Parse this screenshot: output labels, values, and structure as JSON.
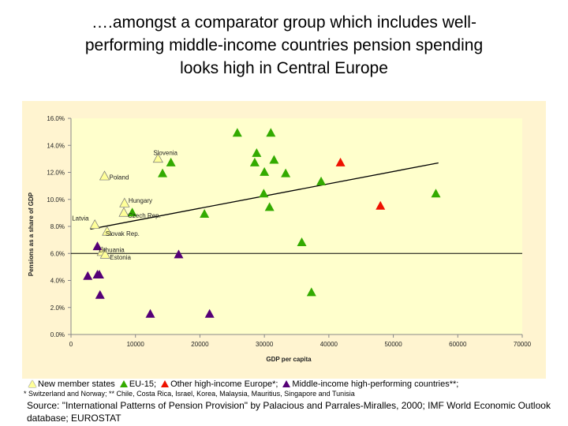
{
  "slide": {
    "title_line1": "….amongst a comparator group which includes well-",
    "title_line2": "performing middle-income countries pension spending",
    "title_line3": "looks high in Central Europe"
  },
  "legend": {
    "items": [
      {
        "label": "New member states",
        "color": "#ffff99"
      },
      {
        "label": "EU-15;",
        "color": "#33aa00"
      },
      {
        "label": "Other high-income Europe*;",
        "color": "#ee1100"
      },
      {
        "label": "Middle-income high-performing countries**;",
        "color": "#550077"
      }
    ]
  },
  "footnote": "* Switzerland and Norway; ** Chile, Costa Rica, Israel, Korea, Malaysia, Mauritius, Singapore and Tunisia",
  "source": "Source: \"International Patterns of Pension Provision\" by Palacious and Parrales-Miralles, 2000; IMF World Economic Outlook database; EUROSTAT",
  "chart_data": {
    "type": "scatter",
    "title": "",
    "xlabel": "GDP per capita",
    "ylabel": "Pensions as a share of GDP",
    "xlim": [
      0,
      70000
    ],
    "ylim": [
      0,
      16
    ],
    "x_ticks": [
      "0",
      "10000",
      "20000",
      "30000",
      "40000",
      "50000",
      "60000",
      "70000"
    ],
    "y_ticks": [
      "0.0%",
      "2.0%",
      "4.0%",
      "6.0%",
      "8.0%",
      "10.0%",
      "12.0%",
      "14.0%",
      "16.0%"
    ],
    "reference_line_y": 6.0,
    "trendline": {
      "x": [
        3000,
        57000
      ],
      "y": [
        7.8,
        12.7
      ]
    },
    "series": [
      {
        "name": "New member states",
        "color": "#ffff99",
        "points": [
          {
            "label": "Slovenia",
            "x": 13500,
            "y": 13.0
          },
          {
            "label": "Poland",
            "x": 5200,
            "y": 11.7
          },
          {
            "label": "Hungary",
            "x": 8300,
            "y": 9.7
          },
          {
            "label": "Czech Rep.",
            "x": 8200,
            "y": 9.0
          },
          {
            "label": "Latvia",
            "x": 3700,
            "y": 8.1
          },
          {
            "label": "Slovak Rep.",
            "x": 5600,
            "y": 7.6
          },
          {
            "label": "Lithuania",
            "x": 4800,
            "y": 6.1
          },
          {
            "label": "Estonia",
            "x": 5300,
            "y": 5.9
          }
        ]
      },
      {
        "name": "EU-15",
        "color": "#33aa00",
        "points": [
          {
            "x": 25800,
            "y": 14.9
          },
          {
            "x": 31000,
            "y": 14.9
          },
          {
            "x": 28800,
            "y": 13.4
          },
          {
            "x": 28500,
            "y": 12.7
          },
          {
            "x": 31500,
            "y": 12.9
          },
          {
            "x": 15500,
            "y": 12.7
          },
          {
            "x": 14200,
            "y": 11.9
          },
          {
            "x": 30000,
            "y": 12.0
          },
          {
            "x": 33300,
            "y": 11.9
          },
          {
            "x": 38800,
            "y": 11.3
          },
          {
            "x": 29900,
            "y": 10.4
          },
          {
            "x": 56600,
            "y": 10.4
          },
          {
            "x": 30800,
            "y": 9.4
          },
          {
            "x": 20700,
            "y": 8.9
          },
          {
            "x": 9500,
            "y": 9.0
          },
          {
            "x": 35800,
            "y": 6.8
          },
          {
            "x": 37300,
            "y": 3.1
          }
        ]
      },
      {
        "name": "Other high-income Europe",
        "color": "#ee1100",
        "points": [
          {
            "x": 41800,
            "y": 12.7
          },
          {
            "x": 48000,
            "y": 9.5
          }
        ]
      },
      {
        "name": "Middle-income high-performing countries",
        "color": "#550077",
        "points": [
          {
            "x": 4100,
            "y": 6.5
          },
          {
            "x": 16700,
            "y": 5.9
          },
          {
            "x": 2600,
            "y": 4.3
          },
          {
            "x": 4100,
            "y": 4.4
          },
          {
            "x": 4400,
            "y": 4.4
          },
          {
            "x": 4500,
            "y": 2.9
          },
          {
            "x": 12300,
            "y": 1.5
          },
          {
            "x": 21500,
            "y": 1.5
          }
        ]
      }
    ]
  }
}
